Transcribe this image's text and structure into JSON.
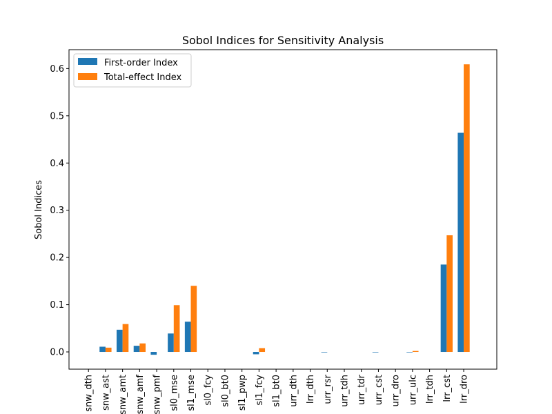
{
  "chart_data": {
    "type": "bar",
    "title": "Sobol Indices for Sensitivity Analysis",
    "xlabel": "",
    "ylabel": "Sobol Indices",
    "ylim": [
      -0.0365,
      0.64
    ],
    "yticks": [
      0.0,
      0.1,
      0.2,
      0.3,
      0.4,
      0.5,
      0.6
    ],
    "ytick_labels": [
      "0.0",
      "0.1",
      "0.2",
      "0.3",
      "0.4",
      "0.5",
      "0.6"
    ],
    "grid": false,
    "legend_position": "top-left",
    "categories": [
      "snw_dth",
      "snw_ast",
      "snw_amt",
      "snw_amf",
      "snw_pmf",
      "sl0_mse",
      "sl1_mse",
      "sl0_fcy",
      "sl0_bt0",
      "sl1_pwp",
      "sl1_fcy",
      "sl1_bt0",
      "urr_dth",
      "lrr_dth",
      "urr_rsr",
      "urr_tdh",
      "urr_tdr",
      "urr_cst",
      "urr_dro",
      "urr_ulc",
      "lrr_tdh",
      "lrr_cst",
      "lrr_dro"
    ],
    "series": [
      {
        "name": "First-order Index",
        "color": "#1f77b4",
        "values": [
          0.0,
          0.011,
          0.047,
          0.013,
          -0.006,
          0.039,
          0.064,
          0.0,
          0.0,
          0.0,
          -0.005,
          0.0,
          0.0,
          0.0,
          -0.001,
          0.0,
          0.0,
          -0.001,
          0.0,
          -0.001,
          0.0,
          0.185,
          0.464
        ]
      },
      {
        "name": "Total-effect Index",
        "color": "#ff7f0e",
        "values": [
          0.0,
          0.009,
          0.059,
          0.018,
          0.0,
          0.099,
          0.14,
          0.0,
          0.0,
          0.0,
          0.008,
          0.0,
          0.0,
          0.0,
          0.0,
          0.0,
          0.0,
          0.0,
          0.0,
          0.002,
          0.0,
          0.247,
          0.609
        ]
      }
    ]
  }
}
